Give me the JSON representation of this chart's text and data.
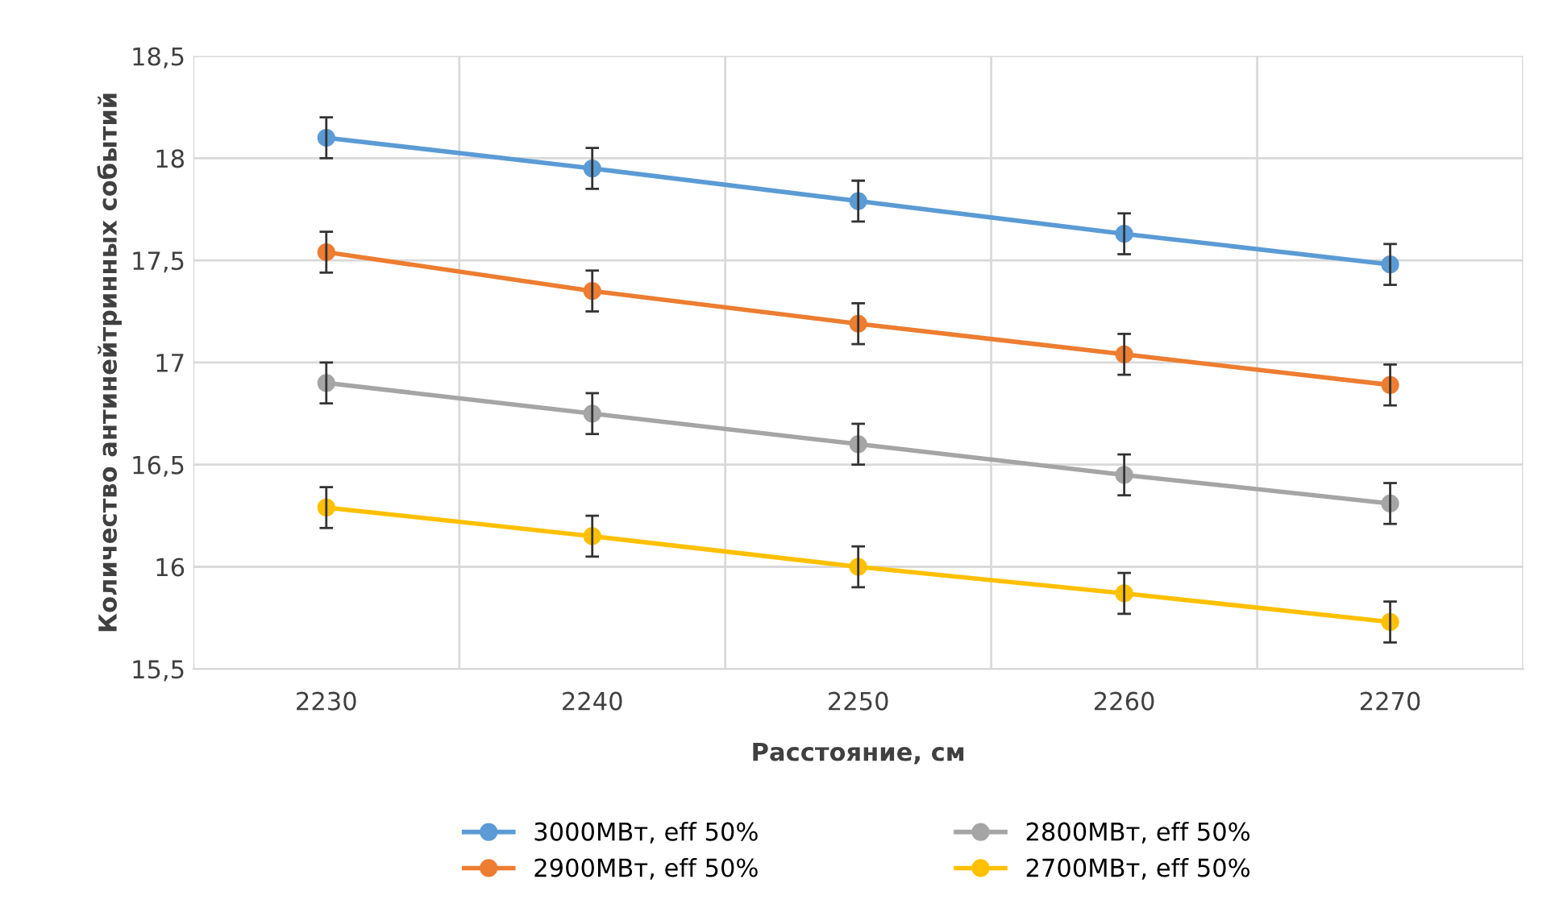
{
  "chart_data": {
    "type": "line",
    "xlabel": "Расстояние, см",
    "ylabel": "Количество антинейтринных событий",
    "categories": [
      "2230",
      "2240",
      "2250",
      "2260",
      "2270"
    ],
    "series": [
      {
        "name": "3000МВт, eff 50%",
        "color": "#5b9bd5",
        "values": [
          18.1,
          17.95,
          17.79,
          17.63,
          17.48
        ],
        "errors": [
          0.1,
          0.1,
          0.1,
          0.1,
          0.1
        ]
      },
      {
        "name": "2900МВт, eff 50%",
        "color": "#ed7d31",
        "values": [
          17.54,
          17.35,
          17.19,
          17.04,
          16.89
        ],
        "errors": [
          0.1,
          0.1,
          0.1,
          0.1,
          0.1
        ]
      },
      {
        "name": "2800МВт, eff 50%",
        "color": "#a5a5a5",
        "values": [
          16.9,
          16.75,
          16.6,
          16.45,
          16.31
        ],
        "errors": [
          0.1,
          0.1,
          0.1,
          0.1,
          0.1
        ]
      },
      {
        "name": "2700МВт, eff 50%",
        "color": "#ffc000",
        "values": [
          16.29,
          16.15,
          16.0,
          15.87,
          15.73
        ],
        "errors": [
          0.1,
          0.1,
          0.1,
          0.1,
          0.1
        ]
      }
    ],
    "ylim": [
      15.5,
      18.5
    ],
    "yticks": [
      {
        "value": 15.5,
        "label": "15,5"
      },
      16,
      {
        "value": 16.5,
        "label": "16,5"
      },
      17,
      {
        "value": 17.5,
        "label": "17,5"
      },
      18,
      {
        "value": 18.5,
        "label": "18,5"
      }
    ],
    "grid": true,
    "legend": "bottom",
    "marker": "circle",
    "line_style": "solid"
  }
}
